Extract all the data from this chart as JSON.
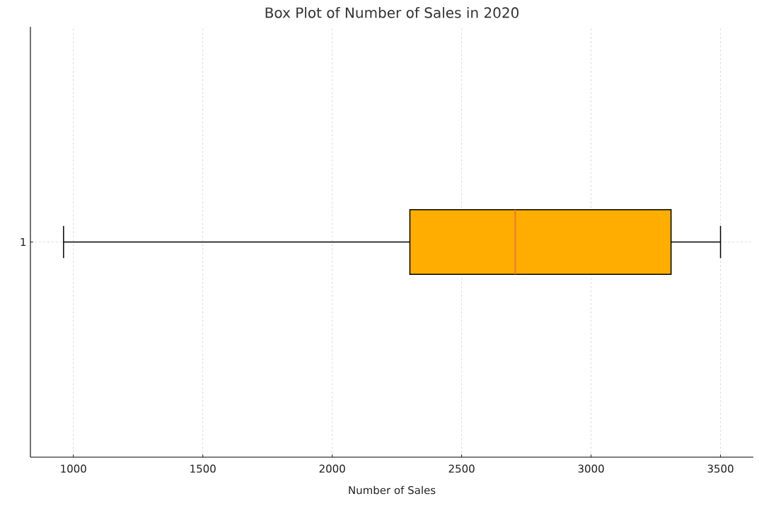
{
  "chart_data": {
    "type": "box",
    "title": "Box Plot of Number of Sales in 2020",
    "xlabel": "Number of Sales",
    "orientation": "horizontal",
    "categories": [
      "1"
    ],
    "boxes": [
      {
        "low": 962,
        "q1": 2300,
        "median": 2707,
        "q3": 3309,
        "high": 3500
      }
    ],
    "color": "#ffae00",
    "xlim": [
      834,
      3627
    ],
    "xticks": [
      1000,
      1500,
      2000,
      2500,
      3000,
      3500
    ],
    "grid": true
  }
}
